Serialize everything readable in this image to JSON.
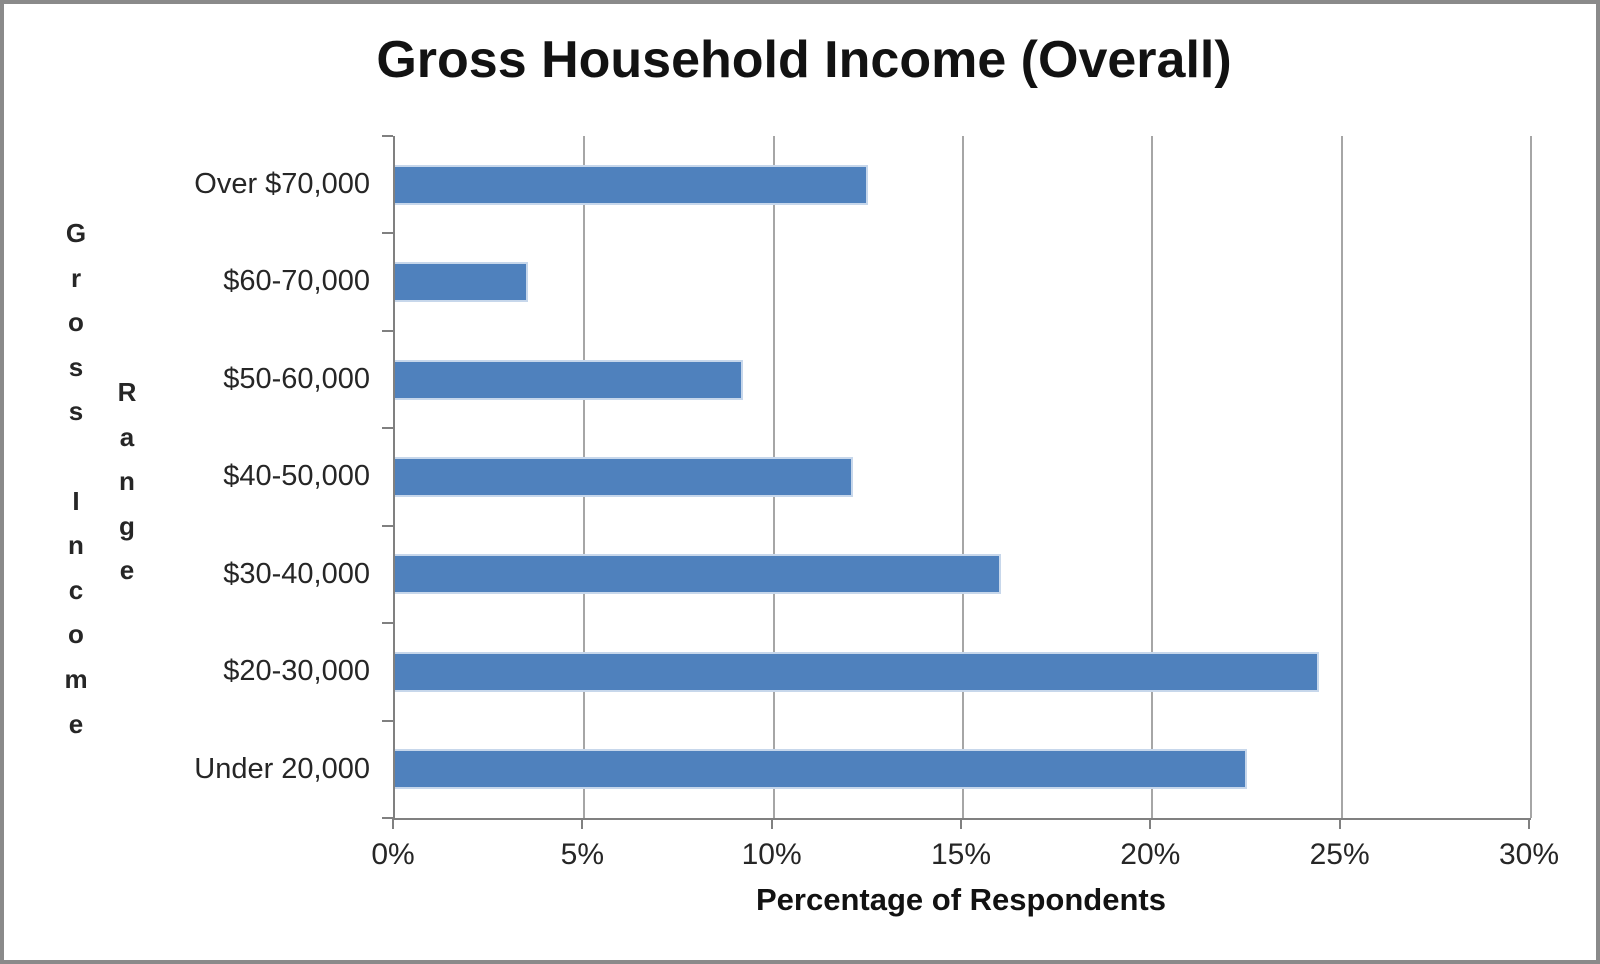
{
  "title": "Gross Household Income (Overall)",
  "chart_data": {
    "type": "bar",
    "orientation": "horizontal",
    "title": "Gross Household Income (Overall)",
    "categories": [
      "Over $70,000",
      "$60-70,000",
      "$50-60,000",
      "$40-50,000",
      "$30-40,000",
      "$20-30,000",
      "Under 20,000"
    ],
    "values": [
      12.5,
      3.5,
      9.2,
      12.1,
      16.0,
      24.4,
      22.5
    ],
    "xlabel": "Percentage of Respondents",
    "ylabel": "Gross Income Range",
    "ylabel_columns": [
      "Gross Income",
      "Range"
    ],
    "xlim": [
      0,
      30
    ],
    "x_tick_step": 5,
    "x_ticks": [
      "0%",
      "5%",
      "10%",
      "15%",
      "20%",
      "25%",
      "30%"
    ],
    "grid": true,
    "legend": false,
    "bar_color": "#4f81bd",
    "bar_border_color": "#c7d7eb",
    "gridline_color": "#a6a6a6",
    "axis_color": "#808080",
    "frame_border_color": "#8a8a8a",
    "text_color": "#262626"
  }
}
